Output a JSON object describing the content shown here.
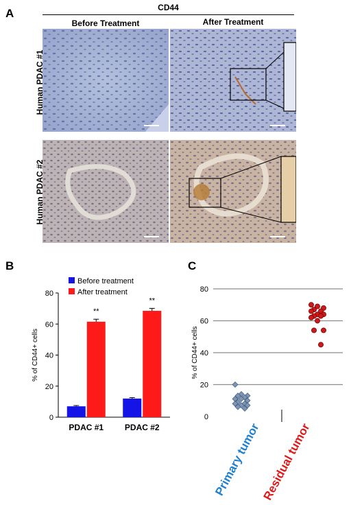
{
  "panel_labels": {
    "a": "A",
    "b": "B",
    "c": "C"
  },
  "figure_a": {
    "marker": "CD44",
    "columns": [
      "Before Treatment",
      "After Treatment"
    ],
    "rows": [
      "Human PDAC #1",
      "Human PDAC #2"
    ]
  },
  "colors": {
    "before": "#1414e6",
    "after": "#ff1a1a",
    "primary": "#7e96b4",
    "residual": "#cc1a1a",
    "primary_label": "#1f7fd0",
    "residual_label": "#e01a1a"
  },
  "chart_data": [
    {
      "type": "bar",
      "categories": [
        "PDAC #1",
        "PDAC #2"
      ],
      "series": [
        {
          "name": "Before treatment",
          "values": [
            7,
            12
          ],
          "errors": [
            0.5,
            0.6
          ]
        },
        {
          "name": "After treatment",
          "values": [
            61.5,
            68.5
          ],
          "errors": [
            1.6,
            1.6
          ]
        }
      ],
      "annotations": [
        "**",
        "**"
      ],
      "ylabel": "% of CD44+ cells",
      "ylim": [
        0,
        80
      ],
      "yticks": [
        0,
        20,
        40,
        60,
        80
      ],
      "legend": "top-left"
    },
    {
      "type": "scatter",
      "categories": [
        "Primary tumor",
        "Residual tumor"
      ],
      "series": [
        {
          "name": "Primary tumor",
          "values": [
            20,
            14,
            13,
            13,
            12,
            11,
            11,
            10,
            9,
            8,
            8,
            7,
            7,
            6,
            5
          ]
        },
        {
          "name": "Residual tumor",
          "values": [
            70,
            69,
            68,
            67,
            66,
            66,
            64,
            64,
            63,
            63,
            62,
            60,
            54,
            54,
            45
          ]
        }
      ],
      "ylabel": "% of CD44+ cells",
      "ylim": [
        0,
        80
      ],
      "yticks": [
        0,
        20,
        40,
        60,
        80
      ],
      "grid": true
    }
  ]
}
